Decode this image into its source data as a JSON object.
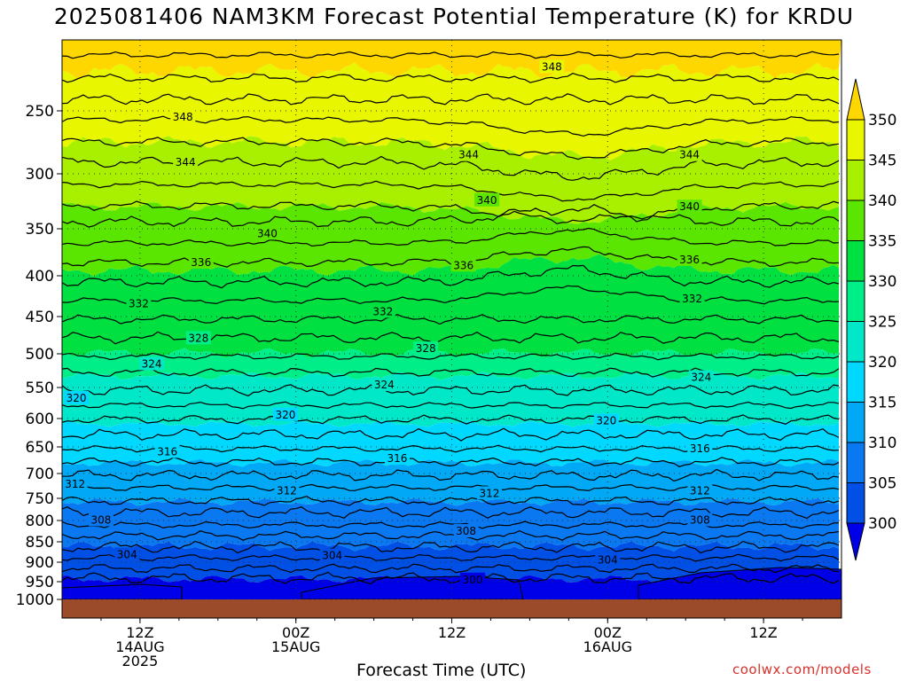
{
  "title": "2025081406 NAM3KM Forecast Potential Temperature (K) for KRDU",
  "watermark": "coolwx.com/models",
  "chart_data": {
    "type": "heatmap",
    "title": "2025081406 NAM3KM Forecast Potential Temperature (K) for KRDU",
    "xlabel": "Forecast Time (UTC)",
    "ylabel": "",
    "x_ticks": [
      {
        "label": [
          "12Z",
          "14AUG",
          "2025"
        ],
        "hours": 6
      },
      {
        "label": [
          "00Z",
          "15AUG"
        ],
        "hours": 18
      },
      {
        "label": [
          "12Z"
        ],
        "hours": 30
      },
      {
        "label": [
          "00Z",
          "16AUG"
        ],
        "hours": 42
      },
      {
        "label": [
          "12Z"
        ],
        "hours": 54
      }
    ],
    "xlim": [
      0,
      60
    ],
    "y_ticks": [
      250,
      300,
      350,
      400,
      450,
      500,
      550,
      600,
      650,
      700,
      750,
      800,
      850,
      900,
      950,
      1000
    ],
    "ylim": [
      1000,
      195
    ],
    "grid": true,
    "colorbar": {
      "ticks": [
        300,
        305,
        310,
        315,
        320,
        325,
        330,
        335,
        340,
        345,
        350
      ],
      "colors": [
        "#0000e8",
        "#0050e6",
        "#0a78f0",
        "#00a8f5",
        "#00d8ff",
        "#00e8c8",
        "#00ee88",
        "#00e040",
        "#5ae600",
        "#a8f000",
        "#e8f600",
        "#ffd700"
      ],
      "range": [
        300,
        350
      ]
    },
    "contour_labels": [
      {
        "value": "348",
        "hours": 9.3,
        "p": 255
      },
      {
        "value": "348",
        "hours": 37.7,
        "p": 216
      },
      {
        "value": "344",
        "hours": 9.5,
        "p": 291
      },
      {
        "value": "344",
        "hours": 31.3,
        "p": 285
      },
      {
        "value": "344",
        "hours": 48.3,
        "p": 285
      },
      {
        "value": "340",
        "hours": 15.8,
        "p": 355
      },
      {
        "value": "340",
        "hours": 32.7,
        "p": 324
      },
      {
        "value": "340",
        "hours": 48.3,
        "p": 330
      },
      {
        "value": "336",
        "hours": 10.7,
        "p": 386
      },
      {
        "value": "336",
        "hours": 30.9,
        "p": 389
      },
      {
        "value": "336",
        "hours": 48.3,
        "p": 383
      },
      {
        "value": "332",
        "hours": 5.9,
        "p": 434
      },
      {
        "value": "332",
        "hours": 24.7,
        "p": 444
      },
      {
        "value": "332",
        "hours": 48.5,
        "p": 428
      },
      {
        "value": "328",
        "hours": 10.5,
        "p": 479
      },
      {
        "value": "328",
        "hours": 28.0,
        "p": 493
      },
      {
        "value": "324",
        "hours": 6.9,
        "p": 515
      },
      {
        "value": "324",
        "hours": 24.8,
        "p": 546
      },
      {
        "value": "324",
        "hours": 49.2,
        "p": 535
      },
      {
        "value": "320",
        "hours": 1.1,
        "p": 567
      },
      {
        "value": "320",
        "hours": 17.2,
        "p": 594
      },
      {
        "value": "320",
        "hours": 41.9,
        "p": 604
      },
      {
        "value": "316",
        "hours": 8.1,
        "p": 659
      },
      {
        "value": "316",
        "hours": 25.8,
        "p": 672
      },
      {
        "value": "316",
        "hours": 49.1,
        "p": 653
      },
      {
        "value": "312",
        "hours": 1.0,
        "p": 721
      },
      {
        "value": "312",
        "hours": 17.3,
        "p": 735
      },
      {
        "value": "312",
        "hours": 32.9,
        "p": 740
      },
      {
        "value": "312",
        "hours": 49.1,
        "p": 735
      },
      {
        "value": "308",
        "hours": 3.0,
        "p": 799
      },
      {
        "value": "308",
        "hours": 31.1,
        "p": 825
      },
      {
        "value": "308",
        "hours": 49.1,
        "p": 799
      },
      {
        "value": "304",
        "hours": 5.0,
        "p": 881
      },
      {
        "value": "304",
        "hours": 20.8,
        "p": 884
      },
      {
        "value": "304",
        "hours": 42.0,
        "p": 895
      },
      {
        "value": "300",
        "hours": 31.6,
        "p": 945
      }
    ]
  }
}
